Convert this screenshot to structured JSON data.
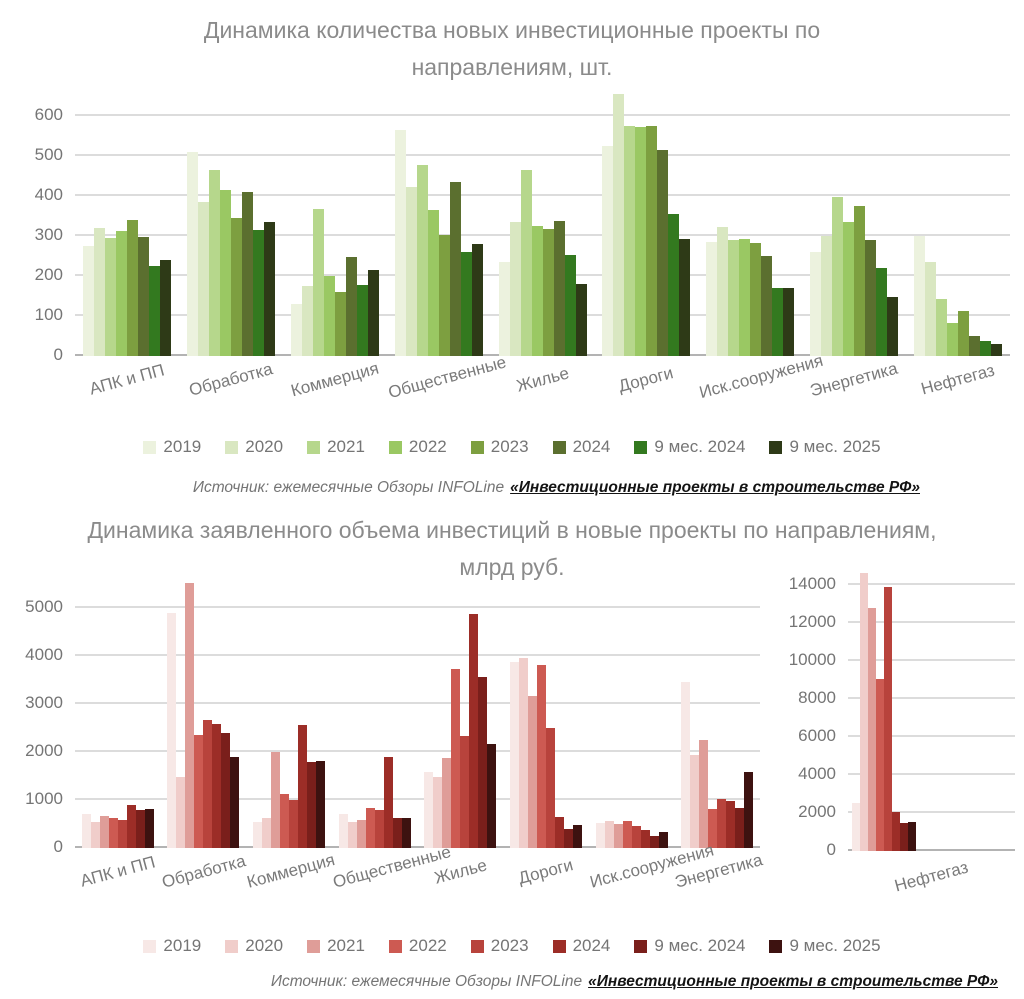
{
  "background": "#ffffff",
  "text_colors": {
    "title": "#8b8b8b",
    "ticks": "#757575",
    "labels": "#7a7a7a"
  },
  "sources": [
    {
      "prefix": "Источник: ежемесячные Обзоры INFOLine",
      "link": "«Инвестиционные проекты в строительстве РФ»"
    },
    {
      "prefix": "Источник: ежемесячные Обзоры INFOLine",
      "link": "«Инвестиционные проекты в строительстве РФ»"
    }
  ],
  "chart_data": [
    {
      "id": "projects-count",
      "type": "bar",
      "title": "Динамика количества новых инвестиционные проекты по направлениям, шт.",
      "grid": true,
      "legend_position": "bottom",
      "ylim": [
        0,
        600
      ],
      "ytick_step": 100,
      "categories": [
        "АПК и ПП",
        "Обработка",
        "Коммерция",
        "Общественные",
        "Жилье",
        "Дороги",
        "Иск.сооружения",
        "Энергетика",
        "Нефтегаз"
      ],
      "series": [
        {
          "name": "2019",
          "color": "#ecf2de",
          "values": [
            275,
            511,
            129,
            564,
            234,
            525,
            285,
            259,
            300
          ]
        },
        {
          "name": "2020",
          "color": "#d9e7c1",
          "values": [
            320,
            386,
            175,
            422,
            335,
            655,
            322,
            301,
            235
          ]
        },
        {
          "name": "2021",
          "color": "#b6d78c",
          "values": [
            296,
            465,
            368,
            477,
            464,
            575,
            290,
            397,
            142
          ]
        },
        {
          "name": "2022",
          "color": "#9ac863",
          "values": [
            312,
            416,
            199,
            364,
            325,
            572,
            293,
            335,
            82
          ]
        },
        {
          "name": "2023",
          "color": "#7d9f40",
          "values": [
            340,
            346,
            161,
            303,
            318,
            575,
            282,
            375,
            113
          ]
        },
        {
          "name": "2024",
          "color": "#5b6f2f",
          "values": [
            298,
            410,
            247,
            436,
            338,
            515,
            249,
            290,
            50
          ]
        },
        {
          "name": "9 мес. 2024",
          "color": "#33791f",
          "values": [
            224,
            316,
            177,
            259,
            253,
            355,
            171,
            220,
            37
          ]
        },
        {
          "name": "9 мес. 2025",
          "color": "#2e3a17",
          "values": [
            240,
            334,
            215,
            279,
            179,
            293,
            171,
            148,
            30
          ]
        }
      ]
    },
    {
      "id": "investment-volume",
      "type": "bar",
      "title": "Динамика заявленного объема инвестиций в новые проекты по направлениям, млрд руб.",
      "grid": true,
      "legend_position": "bottom",
      "ylim": [
        0,
        5000
      ],
      "ytick_step": 1000,
      "categories": [
        "АПК и ПП",
        "Обработка",
        "Коммерция",
        "Общественные",
        "Жилье",
        "Дороги",
        "Иск.сооружения",
        "Энергетика"
      ],
      "series": [
        {
          "name": "2019",
          "color": "#f7e8e6",
          "values": [
            700,
            4900,
            545,
            700,
            1580,
            3880,
            530,
            3450
          ]
        },
        {
          "name": "2020",
          "color": "#f0cdca",
          "values": [
            550,
            1480,
            635,
            545,
            1480,
            3950,
            555,
            1930
          ]
        },
        {
          "name": "2021",
          "color": "#df9d98",
          "values": [
            670,
            5520,
            2000,
            590,
            1870,
            3160,
            510,
            2240
          ]
        },
        {
          "name": "2022",
          "color": "#cd5a52",
          "values": [
            630,
            2350,
            1120,
            830,
            3730,
            3820,
            555,
            810
          ]
        },
        {
          "name": "2023",
          "color": "#b8433c",
          "values": [
            590,
            2660,
            1010,
            785,
            2330,
            2510,
            465,
            1030
          ]
        },
        {
          "name": "2024",
          "color": "#9c2d27",
          "values": [
            890,
            2580,
            2570,
            1900,
            4870,
            640,
            370,
            980
          ]
        },
        {
          "name": "9 мес. 2024",
          "color": "#7a1f1b",
          "values": [
            790,
            2400,
            1790,
            630,
            3570,
            390,
            240,
            840
          ]
        },
        {
          "name": "9 мес. 2025",
          "color": "#3d1210",
          "values": [
            820,
            1890,
            1810,
            630,
            2170,
            470,
            340,
            1590
          ]
        }
      ]
    },
    {
      "id": "investment-volume-oil",
      "type": "bar",
      "title": "",
      "grid": true,
      "legend_position": "none",
      "ylim": [
        0,
        14000
      ],
      "ytick_step": 2000,
      "categories": [
        "Нефтегаз"
      ],
      "series": [
        {
          "name": "2019",
          "color": "#f7e8e6",
          "values": [
            2500
          ]
        },
        {
          "name": "2020",
          "color": "#f0cdca",
          "values": [
            14650
          ]
        },
        {
          "name": "2021",
          "color": "#df9d98",
          "values": [
            12800
          ]
        },
        {
          "name": "2022",
          "color": "#cd5a52",
          "values": [
            9050
          ]
        },
        {
          "name": "2023",
          "color": "#b8433c",
          "values": [
            13900
          ]
        },
        {
          "name": "2024",
          "color": "#9c2d27",
          "values": [
            2050
          ]
        },
        {
          "name": "9 мес. 2024",
          "color": "#7a1f1b",
          "values": [
            1450
          ]
        },
        {
          "name": "9 мес. 2025",
          "color": "#3d1210",
          "values": [
            1500
          ]
        }
      ]
    }
  ]
}
